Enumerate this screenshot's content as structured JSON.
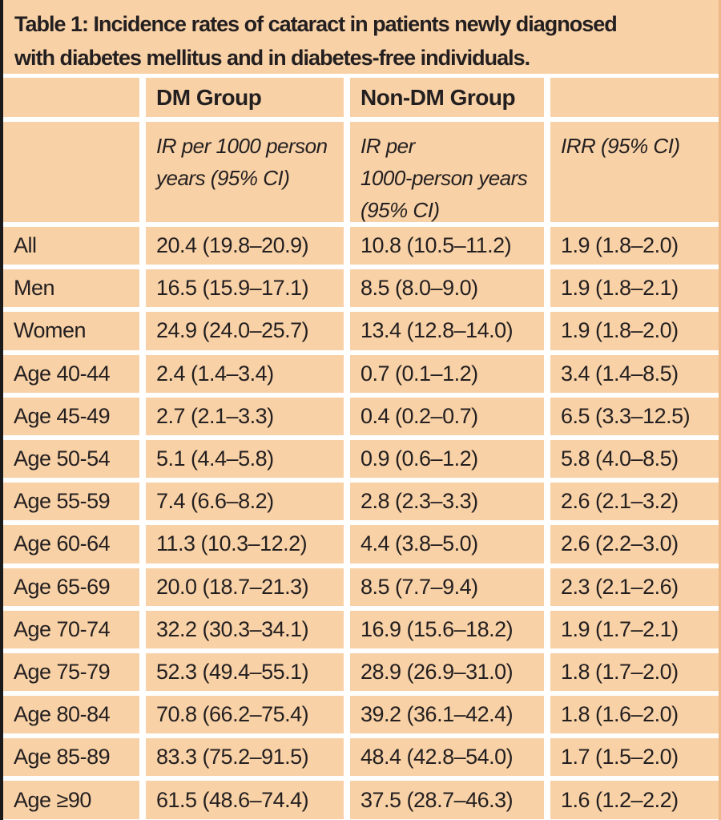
{
  "colors": {
    "cell_background": "#f8d1a6",
    "text": "#231f20",
    "left_bar": "#1a1a1a",
    "gap": "#ffffff",
    "right_edge": "#edb989"
  },
  "table": {
    "title_line1": "Table 1: Incidence rates of cataract in patients newly diagnosed",
    "title_line2": "with diabetes mellitus and in diabetes-free individuals.",
    "group_headers": {
      "dm": "DM Group",
      "non_dm": "Non-DM Group"
    },
    "sub_headers": {
      "dm": [
        "IR per 1000 person",
        "years (95% CI)"
      ],
      "non_dm": [
        "IR per",
        "1000-person years",
        "(95% CI)"
      ],
      "irr": "IRR (95% CI)"
    },
    "rows": [
      {
        "label": "All",
        "dm": "20.4 (19.8–20.9)",
        "non_dm": "10.8 (10.5–11.2)",
        "irr": "1.9 (1.8–2.0)"
      },
      {
        "label": "Men",
        "dm": "16.5 (15.9–17.1)",
        "non_dm": "8.5 (8.0–9.0)",
        "irr": "1.9 (1.8–2.1)"
      },
      {
        "label": "Women",
        "dm": "24.9 (24.0–25.7)",
        "non_dm": "13.4 (12.8–14.0)",
        "irr": "1.9 (1.8–2.0)"
      },
      {
        "label": "Age 40-44",
        "dm": "2.4 (1.4–3.4)",
        "non_dm": "0.7 (0.1–1.2)",
        "irr": "3.4 (1.4–8.5)"
      },
      {
        "label": "Age 45-49",
        "dm": "2.7 (2.1–3.3)",
        "non_dm": "0.4 (0.2–0.7)",
        "irr": "6.5 (3.3–12.5)"
      },
      {
        "label": "Age 50-54",
        "dm": "5.1 (4.4–5.8)",
        "non_dm": "0.9 (0.6–1.2)",
        "irr": "5.8 (4.0–8.5)"
      },
      {
        "label": "Age 55-59",
        "dm": "7.4 (6.6–8.2)",
        "non_dm": "2.8 (2.3–3.3)",
        "irr": "2.6 (2.1–3.2)"
      },
      {
        "label": "Age 60-64",
        "dm": "11.3 (10.3–12.2)",
        "non_dm": "4.4 (3.8–5.0)",
        "irr": "2.6 (2.2–3.0)"
      },
      {
        "label": "Age 65-69",
        "dm": "20.0 (18.7–21.3)",
        "non_dm": "8.5 (7.7–9.4)",
        "irr": "2.3 (2.1–2.6)"
      },
      {
        "label": "Age 70-74",
        "dm": "32.2 (30.3–34.1)",
        "non_dm": "16.9 (15.6–18.2)",
        "irr": "1.9 (1.7–2.1)"
      },
      {
        "label": "Age 75-79",
        "dm": "52.3 (49.4–55.1)",
        "non_dm": "28.9 (26.9–31.0)",
        "irr": "1.8 (1.7–2.0)"
      },
      {
        "label": "Age 80-84",
        "dm": "70.8 (66.2–75.4)",
        "non_dm": "39.2 (36.1–42.4)",
        "irr": "1.8 (1.6–2.0)"
      },
      {
        "label": "Age 85-89",
        "dm": "83.3 (75.2–91.5)",
        "non_dm": "48.4 (42.8–54.0)",
        "irr": "1.7 (1.5–2.0)"
      },
      {
        "label": "Age ≥90",
        "dm": "61.5 (48.6–74.4)",
        "non_dm": "37.5 (28.7–46.3)",
        "irr": "1.6 (1.2–2.2)"
      }
    ]
  }
}
